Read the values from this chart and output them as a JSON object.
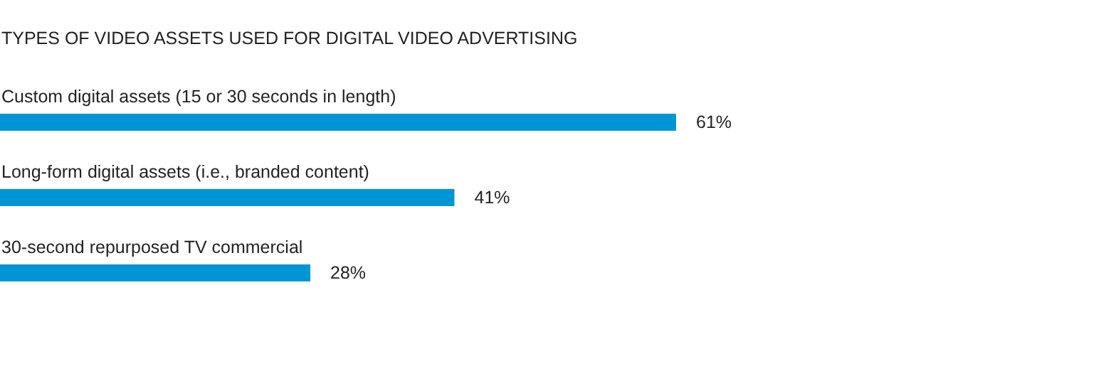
{
  "chart_data": {
    "type": "bar",
    "orientation": "horizontal",
    "title": "TYPES OF VIDEO ASSETS USED FOR DIGITAL VIDEO ADVERTISING",
    "categories": [
      "Custom digital assets (15 or 30 seconds in length)",
      "Long-form digital assets (i.e., branded content)",
      "30-second repurposed TV commercial"
    ],
    "values": [
      61,
      41,
      28
    ],
    "value_labels": [
      "61%",
      "41%",
      "28%"
    ],
    "color": "#0096d6"
  }
}
